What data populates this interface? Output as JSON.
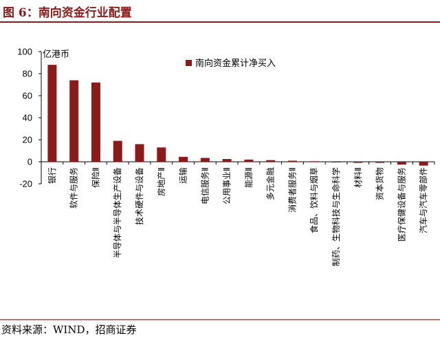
{
  "header": {
    "title": "图 6：南向资金行业配置"
  },
  "footer": {
    "source": "资料来源：WIND，招商证券"
  },
  "chart_data": {
    "type": "bar",
    "unit_label": "亿港币",
    "categories": [
      "银行",
      "软件与服务",
      "保险Ⅱ",
      "半导体与半导体生产设备",
      "技术硬件与设备",
      "房地产Ⅱ",
      "运输",
      "电信服务Ⅱ",
      "公用事业Ⅱ",
      "能源Ⅱ",
      "多元金融",
      "消费者服务Ⅱ",
      "食品、饮料与烟草",
      "制药、生物科技与生命科学",
      "材料Ⅱ",
      "资本货物",
      "医疗保健设备与服务",
      "汽车与汽车零部件"
    ],
    "series": [
      {
        "name": "南向资金累计净买入",
        "values": [
          88,
          74,
          72,
          19,
          16,
          13,
          4.5,
          3.5,
          2.5,
          2,
          1.5,
          1,
          0.5,
          -0.3,
          -1,
          -1,
          -2.5,
          -3.5
        ],
        "color": "#8b1a1a"
      }
    ],
    "ylim": [
      -20,
      100
    ],
    "yticks": [
      100,
      80,
      60,
      40,
      20,
      0,
      -20
    ],
    "grid": false,
    "legend_position": "top"
  }
}
